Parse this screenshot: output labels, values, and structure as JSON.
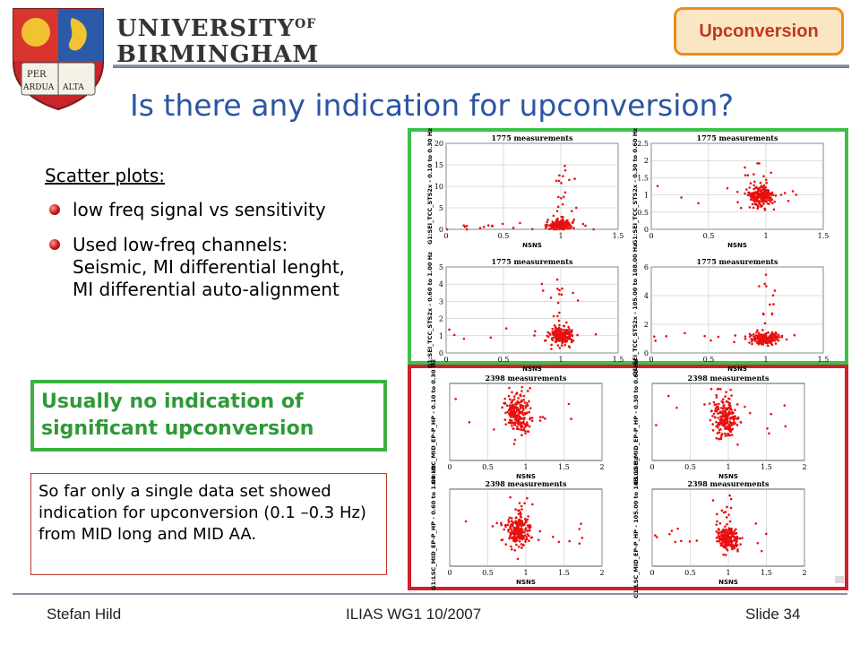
{
  "header": {
    "university_line1": "UNIVERSITY",
    "university_of": "OF",
    "university_line2": "BIRMINGHAM",
    "crest_words": [
      "PER",
      "ARDUA",
      "ALTA"
    ],
    "section_tag": "Upconversion"
  },
  "slide": {
    "title": "Is there any indication for upconversion?",
    "scatter_heading": "Scatter plots:",
    "bullets": [
      "low freq signal vs sensitivity",
      "Used low-freq channels: Seismic, MI differential lenght, MI differential auto-alignment"
    ],
    "highlight_box": "Usually no indication of significant upconversion",
    "note_box": "So far only a single data set showed indication for upconversion (0.1 –0.3 Hz) from MID long and MID AA."
  },
  "colors": {
    "title_blue": "#2a55a4",
    "highlight_green": "#2e9a36",
    "frame_green": "#3cc04a",
    "frame_red": "#d0202a",
    "tag_border": "#f08c1a",
    "tag_text": "#c0381f",
    "point_red": "#e81010"
  },
  "footer": {
    "author": "Stefan Hild",
    "event": "ILIAS WG1 10/2007",
    "slide_number": "Slide 34"
  },
  "chart_data": [
    {
      "type": "scatter",
      "title": "1775 measurements",
      "xlabel": "NSNS",
      "ylabel": "G1:SEI_TCC_STS2x - 0.10 to 0.30 Hz",
      "xlim": [
        0,
        1.5
      ],
      "ylim": [
        0,
        20
      ],
      "xticks": [
        0,
        0.5,
        1,
        1.5
      ],
      "yticks": [
        0,
        5,
        10,
        15,
        20
      ],
      "x_center": 1.0,
      "y_center": 1.0,
      "x_spread": 0.05,
      "y_spread": 0.6,
      "tail_max": 15
    },
    {
      "type": "scatter",
      "title": "1775 measurements",
      "xlabel": "NSNS",
      "ylabel": "G1:SEI_TCC_STS2x - 0.30 to 0.60 Hz",
      "xlim": [
        0,
        1.5
      ],
      "ylim": [
        0,
        2.5
      ],
      "xticks": [
        0,
        0.5,
        1,
        1.5
      ],
      "yticks": [
        0,
        0.5,
        1,
        1.5,
        2,
        2.5
      ],
      "x_center": 0.95,
      "y_center": 0.95,
      "x_spread": 0.06,
      "y_spread": 0.15,
      "tail_max": 2.1
    },
    {
      "type": "scatter",
      "title": "1775 measurements",
      "xlabel": "NSNS",
      "ylabel": "G1:SEI_TCC_STS2x - 0.60 to 1.00 Hz",
      "xlim": [
        0,
        1.5
      ],
      "ylim": [
        0,
        5
      ],
      "xticks": [
        0,
        0.5,
        1,
        1.5
      ],
      "yticks": [
        0,
        1,
        2,
        3,
        4,
        5
      ],
      "x_center": 1.0,
      "y_center": 1.0,
      "x_spread": 0.05,
      "y_spread": 0.25,
      "tail_max": 4.4
    },
    {
      "type": "scatter",
      "title": "1775 measurements",
      "xlabel": "NSNS",
      "ylabel": "G1:SEI_TCC_STS2x - 105.00 to 108.00 Hz",
      "xlim": [
        0,
        1.5
      ],
      "ylim": [
        0,
        6
      ],
      "xticks": [
        0,
        0.5,
        1,
        1.5
      ],
      "yticks": [
        0,
        2,
        4,
        6
      ],
      "x_center": 1.0,
      "y_center": 1.0,
      "x_spread": 0.06,
      "y_spread": 0.2,
      "tail_max": 5.5
    },
    {
      "type": "scatter",
      "title": "2398 measurements",
      "xlabel": "NSNS",
      "ylabel": "G1:LSC_MID_EP-P_HP - 0.10 to 0.30 Hz",
      "xlim": [
        0,
        2
      ],
      "ylim": [
        0,
        4
      ],
      "xticks": [
        0,
        0.5,
        1,
        1.5,
        2
      ],
      "yticks": [],
      "x_center": 0.9,
      "y_center": 2.4,
      "x_spread": 0.08,
      "y_spread": 0.5,
      "tail_max": 3.8
    },
    {
      "type": "scatter",
      "title": "2398 measurements",
      "xlabel": "NSNS",
      "ylabel": "G1:LSC_MID_EP-P_HP - 0.30 to 0.60 Hz",
      "xlim": [
        0,
        2
      ],
      "ylim": [
        0,
        4
      ],
      "xticks": [
        0,
        0.5,
        1,
        1.5,
        2
      ],
      "yticks": [],
      "x_center": 0.95,
      "y_center": 2.2,
      "x_spread": 0.08,
      "y_spread": 0.5,
      "tail_max": 3.8
    },
    {
      "type": "scatter",
      "title": "2398 measurements",
      "xlabel": "NSNS",
      "ylabel": "G1:LSC_MID_EP-P_HP - 0.60 to 1.00 Hz",
      "xlim": [
        0,
        2
      ],
      "ylim": [
        0,
        4
      ],
      "xticks": [
        0,
        0.5,
        1,
        1.5,
        2
      ],
      "yticks": [],
      "x_center": 0.9,
      "y_center": 1.8,
      "x_spread": 0.08,
      "y_spread": 0.4,
      "tail_max": 3.6
    },
    {
      "type": "scatter",
      "title": "2398 measurements",
      "xlabel": "NSNS",
      "ylabel": "G1:LSC_MID_EP-P_HP - 105.00 to 108.00 Hz",
      "xlim": [
        0,
        2
      ],
      "ylim": [
        0,
        4
      ],
      "xticks": [
        0,
        0.5,
        1,
        1.5,
        2
      ],
      "yticks": [],
      "x_center": 1.0,
      "y_center": 1.4,
      "x_spread": 0.07,
      "y_spread": 0.3,
      "tail_max": 3.8
    }
  ]
}
